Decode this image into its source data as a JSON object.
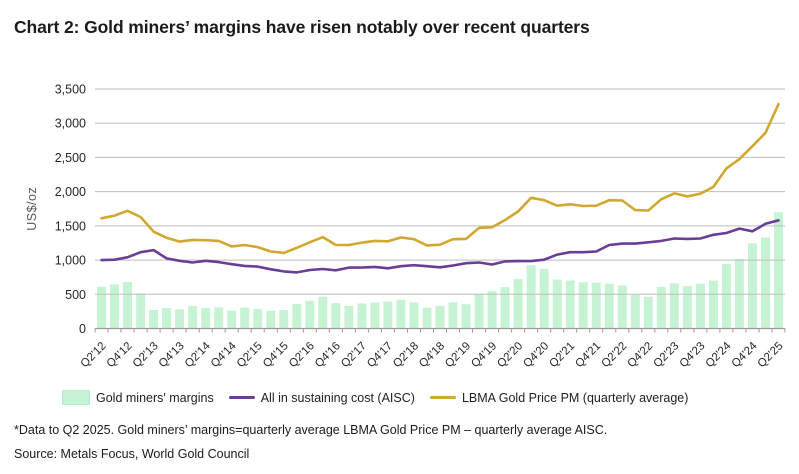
{
  "title": "Chart 2: Gold miners’ margins have risen notably over recent quarters",
  "footnote": "*Data to Q2 2025. Gold miners’ margins=quarterly average LBMA Gold Price PM – quarterly average AISC.",
  "source": "Source: Metals Focus, World Gold Council",
  "colors": {
    "bars": "#c7f3d5",
    "aisc_line": "#6a3d96",
    "gold_line": "#d2a72f",
    "gridline": "#bdbdbd",
    "axis": "#9a9a9a",
    "tick_text": "#262626",
    "axis_title_text": "#555555"
  },
  "chart_data": {
    "type": "bar",
    "subtype": "bar + line combo, quarterly time series",
    "title": "Chart 2: Gold miners’ margins have risen notably over recent quarters",
    "xlabel": "",
    "ylabel": "US$/oz",
    "ylim": [
      0,
      3500
    ],
    "ytick_values": [
      0,
      500,
      1000,
      1500,
      2000,
      2500,
      3000,
      3500
    ],
    "ytick_labels": [
      "0",
      "500",
      "1,000",
      "1,500",
      "2,000",
      "2,500",
      "3,000",
      "3,500"
    ],
    "grid": "horizontal",
    "legend_position": "bottom",
    "x_tick_label_every": 2,
    "categories": [
      "Q2'12",
      "Q3'12",
      "Q4'12",
      "Q1'13",
      "Q2'13",
      "Q3'13",
      "Q4'13",
      "Q1'14",
      "Q2'14",
      "Q3'14",
      "Q4'14",
      "Q1'15",
      "Q2'15",
      "Q3'15",
      "Q4'15",
      "Q1'16",
      "Q2'16",
      "Q3'16",
      "Q4'16",
      "Q1'17",
      "Q2'17",
      "Q3'17",
      "Q4'17",
      "Q1'18",
      "Q2'18",
      "Q3'18",
      "Q4'18",
      "Q1'19",
      "Q2'19",
      "Q3'19",
      "Q4'19",
      "Q1'20",
      "Q2'20",
      "Q3'20",
      "Q4'20",
      "Q1'21",
      "Q2'21",
      "Q3'21",
      "Q4'21",
      "Q1'22",
      "Q2'22",
      "Q3'22",
      "Q4'22",
      "Q1'23",
      "Q2'23",
      "Q3'23",
      "Q4'23",
      "Q1'24",
      "Q2'24",
      "Q3'24",
      "Q4'24",
      "Q1'25",
      "Q2'25"
    ],
    "series": [
      {
        "name": "Gold miners' margins",
        "type": "bar",
        "color": "#c7f3d5",
        "values": [
          610,
          645,
          680,
          515,
          270,
          300,
          280,
          330,
          300,
          310,
          260,
          305,
          285,
          260,
          270,
          360,
          405,
          465,
          370,
          330,
          365,
          380,
          395,
          420,
          380,
          305,
          330,
          385,
          355,
          505,
          545,
          605,
          725,
          925,
          870,
          715,
          700,
          675,
          670,
          655,
          630,
          490,
          465,
          610,
          660,
          620,
          655,
          700,
          945,
          1015,
          1245,
          1330,
          1700
        ]
      },
      {
        "name": "All in sustaining cost (AISC)",
        "type": "line",
        "color": "#6a3d96",
        "values": [
          1000,
          1005,
          1040,
          1115,
          1145,
          1025,
          990,
          965,
          990,
          970,
          940,
          915,
          905,
          865,
          835,
          820,
          855,
          870,
          850,
          890,
          890,
          900,
          880,
          910,
          925,
          910,
          895,
          920,
          955,
          965,
          935,
          980,
          985,
          985,
          1005,
          1080,
          1115,
          1115,
          1125,
          1220,
          1240,
          1240,
          1260,
          1280,
          1315,
          1310,
          1315,
          1370,
          1395,
          1460,
          1420,
          1530,
          1580
        ]
      },
      {
        "name": "LBMA Gold Price PM (quarterly average)",
        "type": "line",
        "color": "#d2a72f",
        "values": [
          1610,
          1650,
          1720,
          1630,
          1415,
          1325,
          1270,
          1295,
          1290,
          1280,
          1200,
          1220,
          1190,
          1125,
          1105,
          1180,
          1260,
          1335,
          1220,
          1220,
          1255,
          1280,
          1275,
          1330,
          1305,
          1215,
          1225,
          1305,
          1310,
          1470,
          1480,
          1585,
          1710,
          1910,
          1875,
          1795,
          1815,
          1790,
          1795,
          1875,
          1870,
          1730,
          1725,
          1890,
          1975,
          1930,
          1970,
          2070,
          2340,
          2475,
          2665,
          2860,
          3280
        ]
      }
    ]
  }
}
